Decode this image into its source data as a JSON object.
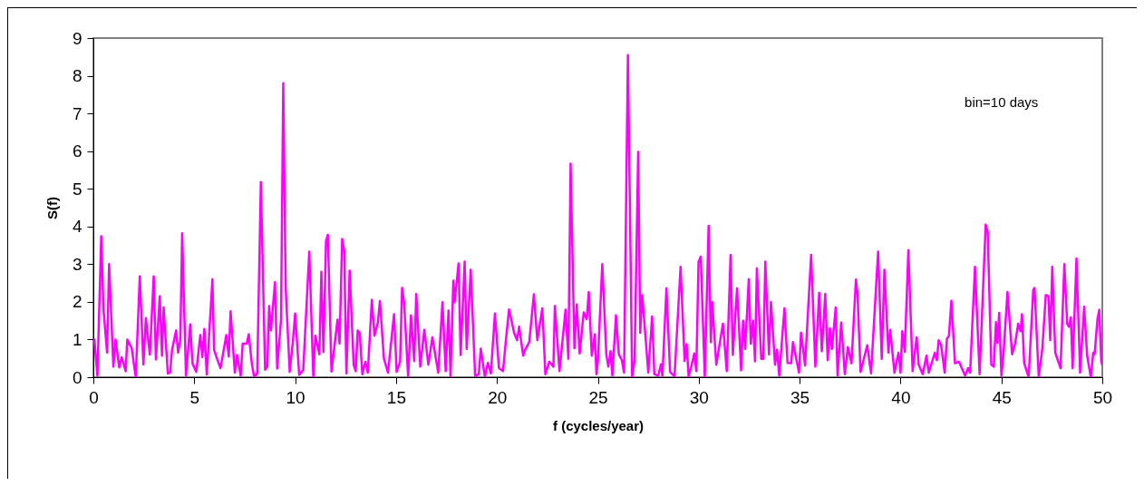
{
  "chart_data": {
    "type": "line",
    "xlabel": "f (cycles/year)",
    "ylabel": "S(f)",
    "annotations": [
      "bin=10 days"
    ],
    "xlim": [
      0,
      50
    ],
    "xticks": [
      0,
      5,
      10,
      15,
      20,
      25,
      30,
      35,
      40,
      45,
      50
    ],
    "ylim": [
      0,
      9
    ],
    "yticks": [
      0,
      1,
      2,
      3,
      4,
      5,
      6,
      7,
      8,
      9
    ],
    "grid": false,
    "marker": "none",
    "line_style": "solid",
    "series": [
      {
        "color": "#ff00ff",
        "x": [
          0.05,
          0.2,
          0.39,
          0.5,
          0.68,
          0.78,
          0.99,
          1.1,
          1.28,
          1.4,
          1.6,
          1.68,
          1.9,
          2.1,
          2.3,
          2.48,
          2.6,
          2.8,
          2.99,
          3.1,
          3.29,
          3.4,
          3.48,
          3.69,
          3.8,
          3.9,
          4.1,
          4.2,
          4.31,
          4.4,
          4.59,
          4.8,
          4.91,
          5.1,
          5.3,
          5.4,
          5.5,
          5.62,
          5.9,
          5.98,
          6.13,
          6.3,
          6.59,
          6.71,
          6.8,
          7.01,
          7.12,
          7.3,
          7.4,
          7.6,
          7.7,
          7.85,
          7.97,
          8.12,
          8.3,
          8.51,
          8.62,
          8.71,
          8.8,
          9.0,
          9.11,
          9.3,
          9.41,
          9.53,
          9.73,
          9.88,
          10.0,
          10.2,
          10.4,
          10.7,
          10.9,
          11.0,
          11.2,
          11.3,
          11.4,
          11.53,
          11.62,
          11.8,
          12.1,
          12.2,
          12.33,
          12.43,
          12.54,
          12.7,
          12.9,
          13.0,
          13.1,
          13.2,
          13.33,
          13.48,
          13.6,
          13.8,
          13.93,
          14.1,
          14.2,
          14.4,
          14.6,
          14.9,
          15.03,
          15.2,
          15.3,
          15.4,
          15.6,
          15.74,
          15.9,
          16.0,
          16.2,
          16.4,
          16.6,
          16.8,
          17.09,
          17.3,
          17.46,
          17.6,
          17.7,
          17.84,
          17.9,
          18.1,
          18.2,
          18.4,
          18.5,
          18.7,
          18.92,
          19.1,
          19.2,
          19.4,
          19.55,
          19.7,
          19.9,
          20.1,
          20.3,
          20.47,
          20.6,
          20.85,
          21.0,
          21.1,
          21.3,
          21.4,
          21.6,
          21.83,
          22.0,
          22.25,
          22.4,
          22.6,
          22.8,
          22.87,
          23.1,
          23.4,
          23.54,
          23.65,
          23.84,
          23.95,
          24.1,
          24.3,
          24.45,
          24.55,
          24.7,
          24.85,
          24.93,
          25.0,
          25.22,
          25.42,
          25.52,
          25.63,
          25.72,
          25.9,
          26.04,
          26.19,
          26.3,
          26.49,
          26.7,
          26.82,
          27.0,
          27.1,
          27.2,
          27.5,
          27.69,
          27.8,
          27.99,
          28.13,
          28.2,
          28.4,
          28.58,
          28.8,
          29.1,
          29.3,
          29.4,
          29.5,
          29.63,
          29.78,
          29.88,
          29.99,
          30.1,
          30.3,
          30.49,
          30.6,
          30.67,
          30.87,
          31.2,
          31.39,
          31.58,
          31.69,
          31.9,
          32.1,
          32.2,
          32.3,
          32.48,
          32.58,
          32.69,
          32.79,
          32.88,
          33.1,
          33.2,
          33.3,
          33.48,
          33.58,
          33.78,
          33.88,
          33.99,
          34.25,
          34.4,
          34.58,
          34.67,
          34.97,
          35.07,
          35.27,
          35.57,
          35.78,
          35.97,
          36.1,
          36.27,
          36.39,
          36.5,
          36.6,
          36.79,
          36.88,
          37.06,
          37.24,
          37.39,
          37.57,
          37.79,
          37.87,
          38.02,
          38.35,
          38.54,
          38.89,
          39.07,
          39.2,
          39.4,
          39.49,
          39.7,
          39.9,
          40.0,
          40.09,
          40.21,
          40.39,
          40.6,
          40.8,
          40.9,
          41.1,
          41.29,
          41.4,
          41.7,
          41.8,
          41.89,
          42.01,
          42.19,
          42.3,
          42.4,
          42.52,
          42.7,
          42.9,
          43.2,
          43.35,
          43.45,
          43.69,
          43.92,
          44.22,
          44.32,
          44.5,
          44.62,
          44.73,
          44.8,
          44.89,
          45.0,
          45.1,
          45.3,
          45.53,
          45.68,
          45.83,
          45.95,
          46.02,
          46.13,
          46.35,
          46.58,
          46.64,
          46.85,
          47.03,
          47.2,
          47.33,
          47.42,
          47.52,
          47.67,
          47.93,
          48.12,
          48.26,
          48.35,
          48.44,
          48.53,
          48.72,
          48.9,
          49.1,
          49.25,
          49.43,
          49.55,
          49.62,
          49.76,
          49.85,
          49.95,
          50.0
        ],
        "values": [
          1.0,
          0.04,
          3.74,
          1.8,
          0.65,
          3.0,
          0.28,
          1.0,
          0.26,
          0.53,
          0.16,
          1.0,
          0.77,
          0.0,
          2.68,
          0.34,
          1.57,
          0.6,
          2.68,
          0.47,
          2.15,
          0.57,
          1.85,
          0.1,
          0.12,
          0.73,
          1.24,
          0.65,
          1.0,
          3.82,
          0.04,
          1.4,
          0.37,
          0.14,
          1.12,
          0.53,
          1.28,
          0.07,
          2.6,
          0.73,
          0.49,
          0.24,
          1.12,
          0.55,
          1.75,
          0.12,
          0.59,
          0.04,
          0.89,
          0.89,
          1.14,
          0.37,
          0.0,
          0.1,
          5.18,
          0.2,
          0.28,
          1.89,
          1.24,
          2.52,
          0.23,
          1.54,
          7.8,
          2.36,
          0.14,
          0.91,
          1.69,
          0.06,
          0.19,
          3.33,
          0.0,
          1.1,
          0.61,
          2.8,
          0.67,
          3.62,
          3.78,
          0.15,
          1.53,
          0.89,
          3.67,
          3.37,
          0.1,
          2.83,
          0.33,
          0.16,
          1.24,
          1.18,
          0.08,
          0.41,
          0.12,
          2.05,
          1.1,
          1.46,
          2.02,
          0.49,
          0.12,
          1.67,
          0.14,
          0.41,
          2.37,
          1.98,
          0.0,
          1.64,
          0.43,
          2.21,
          0.28,
          1.26,
          0.33,
          1.06,
          0.12,
          1.99,
          0.16,
          1.77,
          0.0,
          2.56,
          1.99,
          3.02,
          0.59,
          3.07,
          0.75,
          2.85,
          0.02,
          0.08,
          0.76,
          0.0,
          0.38,
          0.1,
          1.69,
          0.24,
          0.16,
          1.12,
          1.8,
          1.18,
          0.98,
          1.34,
          0.57,
          0.73,
          0.93,
          2.2,
          0.98,
          1.83,
          0.08,
          0.41,
          0.28,
          1.89,
          0.16,
          1.79,
          0.49,
          5.67,
          0.77,
          1.93,
          0.63,
          1.72,
          1.54,
          2.26,
          0.57,
          1.14,
          0.08,
          0.41,
          3.0,
          0.61,
          0.28,
          0.69,
          0.04,
          1.64,
          0.61,
          0.45,
          0.12,
          8.55,
          0.0,
          0.45,
          5.98,
          1.18,
          2.18,
          0.12,
          1.61,
          0.08,
          0.04,
          0.34,
          0.04,
          2.36,
          0.14,
          0.02,
          2.93,
          0.43,
          0.88,
          0.02,
          0.28,
          0.63,
          0.16,
          3.05,
          3.2,
          0.0,
          4.02,
          0.93,
          1.99,
          0.33,
          1.42,
          0.16,
          3.24,
          0.59,
          2.36,
          0.18,
          1.5,
          0.75,
          2.6,
          0.89,
          1.5,
          0.42,
          2.89,
          0.49,
          0.49,
          3.07,
          0.61,
          2.0,
          0.33,
          0.73,
          0.04,
          1.83,
          0.38,
          0.37,
          0.93,
          0.12,
          1.18,
          0.31,
          3.25,
          0.28,
          2.24,
          0.69,
          2.21,
          0.45,
          1.3,
          0.75,
          1.85,
          0.04,
          1.45,
          0.08,
          0.8,
          0.37,
          2.59,
          2.2,
          0.14,
          0.85,
          0.1,
          3.33,
          0.49,
          2.85,
          0.65,
          1.26,
          0.12,
          0.65,
          0.12,
          1.22,
          0.67,
          3.37,
          0.16,
          1.06,
          0.33,
          0.08,
          0.57,
          0.12,
          0.65,
          0.45,
          0.98,
          0.85,
          0.12,
          1.02,
          1.1,
          2.03,
          0.37,
          0.41,
          0.04,
          0.24,
          0.12,
          2.93,
          0.08,
          4.05,
          3.86,
          0.33,
          0.28,
          1.46,
          0.91,
          1.71,
          0.04,
          0.59,
          2.26,
          0.61,
          0.89,
          1.42,
          1.22,
          1.67,
          0.37,
          0.0,
          2.32,
          2.37,
          0.0,
          0.77,
          2.18,
          2.15,
          0.98,
          2.93,
          0.65,
          0.24,
          3.0,
          1.42,
          1.34,
          1.59,
          0.24,
          3.15,
          0.12,
          1.87,
          0.57,
          0.0,
          0.65,
          0.61,
          1.54,
          1.79,
          0.41,
          0.33
        ]
      }
    ]
  }
}
